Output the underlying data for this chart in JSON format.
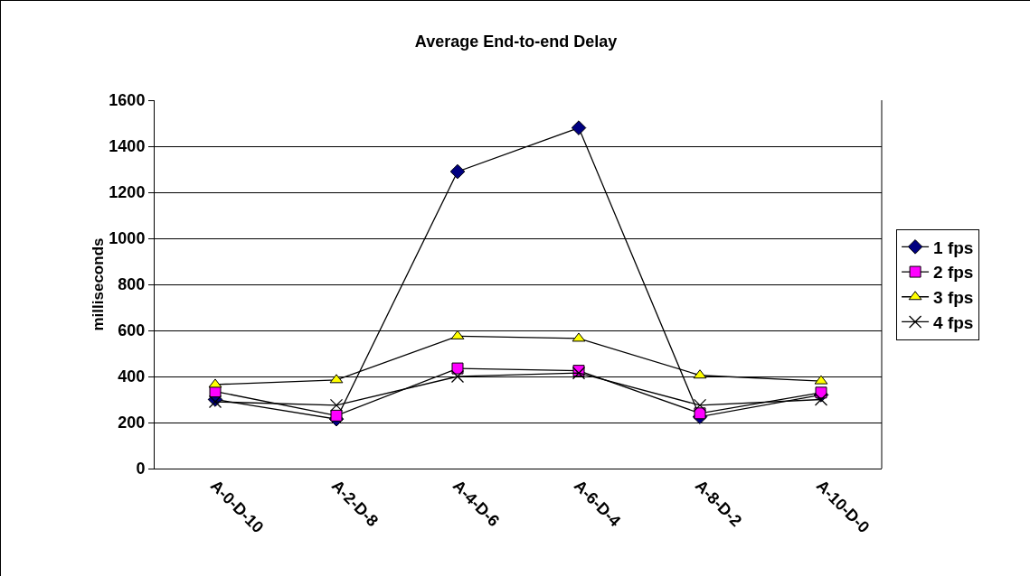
{
  "chart_data": {
    "type": "line",
    "title": "Average End-to-end Delay",
    "ylabel": "milliseconds",
    "categories": [
      "A-0-D-10",
      "A-2-D-8",
      "A-4-D-6",
      "A-6-D-4",
      "A-8-D-2",
      "A-10-D-0"
    ],
    "series": [
      {
        "name": "1 fps",
        "color": "#000080",
        "marker": "diamond",
        "values": [
          300,
          215,
          1290,
          1480,
          225,
          320
        ]
      },
      {
        "name": "2 fps",
        "color": "#ff00ff",
        "marker": "square",
        "values": [
          335,
          230,
          435,
          425,
          240,
          330
        ]
      },
      {
        "name": "3 fps",
        "color": "#ffff00",
        "marker": "triangle",
        "values": [
          365,
          385,
          575,
          565,
          405,
          380
        ]
      },
      {
        "name": "4 fps",
        "color": "#000000",
        "marker": "cross",
        "values": [
          290,
          275,
          400,
          415,
          275,
          300
        ]
      }
    ],
    "ylim": [
      0,
      1600
    ],
    "yticks": [
      0,
      200,
      400,
      600,
      800,
      1000,
      1200,
      1400,
      1600
    ],
    "grid": "y",
    "legend": "right",
    "line_style": "solid"
  }
}
